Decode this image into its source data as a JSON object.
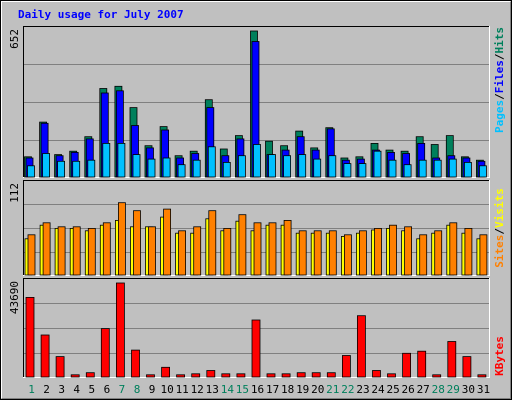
{
  "title": "Daily usage for July 2007",
  "colors": {
    "hits": "#00805C",
    "files": "#0000FF",
    "pages": "#00C0FF",
    "visits": "#FFFF00",
    "sites": "#FF8000",
    "kbytes": "#FF0000",
    "title": "#0000FF",
    "weekend_label": "#00805C",
    "weekday_label": "#000000"
  },
  "legends": {
    "top": [
      {
        "key": "pages",
        "text": "Pages",
        "color": "#00C0FF"
      },
      {
        "key": "sep",
        "text": "/",
        "color": "#000000"
      },
      {
        "key": "files",
        "text": "Files",
        "color": "#0000FF"
      },
      {
        "key": "sep",
        "text": "/",
        "color": "#000000"
      },
      {
        "key": "hits",
        "text": "Hits",
        "color": "#00805C"
      }
    ],
    "middle": [
      {
        "key": "sites",
        "text": "Sites",
        "color": "#FF8000"
      },
      {
        "key": "sep",
        "text": "/",
        "color": "#000000"
      },
      {
        "key": "visits",
        "text": "Visits",
        "color": "#FFFF00"
      }
    ],
    "bottom": [
      {
        "key": "kbytes",
        "text": "KBytes",
        "color": "#FF0000"
      }
    ]
  },
  "chart_data": [
    {
      "type": "bar",
      "title": "Daily usage for July 2007",
      "ylabel": "Pages/Files/Hits",
      "y_max_label": "652",
      "ylim": [
        0,
        652
      ],
      "categories": [
        "1",
        "2",
        "3",
        "4",
        "5",
        "6",
        "7",
        "8",
        "9",
        "10",
        "11",
        "12",
        "13",
        "14",
        "15",
        "16",
        "17",
        "18",
        "19",
        "20",
        "21",
        "22",
        "23",
        "24",
        "25",
        "26",
        "27",
        "28",
        "29",
        "30",
        "31"
      ],
      "weekend_days": [
        "1",
        "7",
        "8",
        "14",
        "15",
        "21",
        "22",
        "28",
        "29"
      ],
      "series": [
        {
          "name": "Hits",
          "values": [
            90,
            245,
            100,
            115,
            180,
            395,
            405,
            310,
            140,
            225,
            95,
            115,
            345,
            125,
            185,
            652,
            160,
            140,
            205,
            130,
            220,
            85,
            90,
            150,
            120,
            115,
            180,
            145,
            185,
            90,
            75
          ]
        },
        {
          "name": "Files",
          "values": [
            85,
            240,
            95,
            110,
            170,
            375,
            385,
            230,
            130,
            210,
            85,
            105,
            310,
            95,
            170,
            605,
            100,
            120,
            180,
            120,
            215,
            75,
            80,
            120,
            110,
            105,
            150,
            85,
            95,
            85,
            70
          ]
        },
        {
          "name": "Pages",
          "values": [
            50,
            105,
            70,
            70,
            75,
            150,
            150,
            100,
            80,
            85,
            55,
            75,
            135,
            65,
            95,
            145,
            100,
            95,
            100,
            80,
            95,
            60,
            60,
            115,
            75,
            55,
            75,
            75,
            80,
            65,
            50
          ]
        }
      ]
    },
    {
      "type": "bar",
      "ylabel": "Sites/Visits",
      "y_max_label": "112",
      "ylim": [
        0,
        112
      ],
      "categories": [
        "1",
        "2",
        "3",
        "4",
        "5",
        "6",
        "7",
        "8",
        "9",
        "10",
        "11",
        "12",
        "13",
        "14",
        "15",
        "16",
        "17",
        "18",
        "19",
        "20",
        "21",
        "22",
        "23",
        "24",
        "25",
        "26",
        "27",
        "28",
        "29",
        "30",
        "31"
      ],
      "series": [
        {
          "name": "Visits",
          "values": [
            45,
            62,
            58,
            58,
            55,
            62,
            68,
            60,
            60,
            72,
            52,
            52,
            70,
            55,
            67,
            55,
            62,
            62,
            52,
            52,
            52,
            48,
            52,
            56,
            58,
            55,
            45,
            52,
            62,
            52,
            45
          ]
        },
        {
          "name": "Sites",
          "values": [
            50,
            65,
            60,
            60,
            58,
            65,
            90,
            80,
            60,
            82,
            55,
            60,
            80,
            58,
            75,
            65,
            65,
            68,
            55,
            55,
            55,
            50,
            55,
            58,
            62,
            60,
            50,
            55,
            65,
            58,
            50
          ]
        }
      ]
    },
    {
      "type": "bar",
      "ylabel": "KBytes",
      "y_max_label": "43690",
      "ylim": [
        0,
        43690
      ],
      "categories": [
        "1",
        "2",
        "3",
        "4",
        "5",
        "6",
        "7",
        "8",
        "9",
        "10",
        "11",
        "12",
        "13",
        "14",
        "15",
        "16",
        "17",
        "18",
        "19",
        "20",
        "21",
        "22",
        "23",
        "24",
        "25",
        "26",
        "27",
        "28",
        "29",
        "30",
        "31"
      ],
      "series": [
        {
          "name": "KBytes",
          "values": [
            37000,
            19500,
            9500,
            1000,
            2000,
            22500,
            43690,
            12500,
            1000,
            4500,
            1000,
            1500,
            3000,
            1500,
            1500,
            26500,
            1500,
            1500,
            2000,
            2000,
            2000,
            10000,
            28500,
            3000,
            1500,
            11000,
            12000,
            1000,
            16500,
            9500,
            1000
          ]
        }
      ]
    }
  ]
}
